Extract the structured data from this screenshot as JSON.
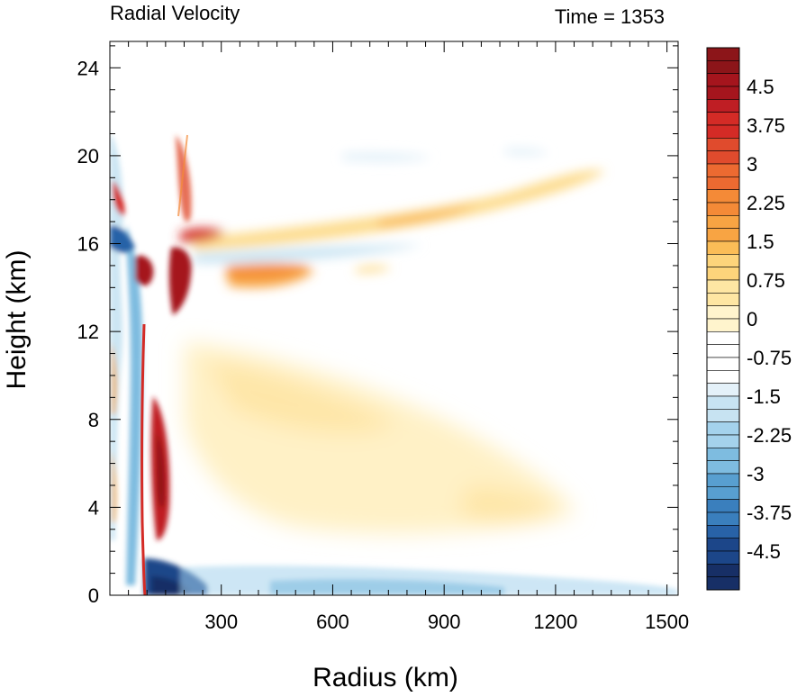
{
  "chart_data": {
    "type": "heatmap",
    "title_left": "Radial Velocity",
    "title_right": "Time = 1353",
    "xlabel": "Radius (km)",
    "ylabel": "Height (km)",
    "xlim": [
      0,
      1530
    ],
    "ylim": [
      0,
      25.2
    ],
    "xticks": [
      300,
      600,
      900,
      1200,
      1500
    ],
    "yticks": [
      0,
      4,
      8,
      12,
      16,
      20,
      24
    ],
    "colorbar": {
      "min": -5.25,
      "max": 5.25,
      "step": 0.25,
      "labels": [
        "4.5",
        "3.75",
        "3",
        "2.25",
        "1.5",
        "0.75",
        "0",
        "-0.75",
        "-1.5",
        "-2.25",
        "-3",
        "-3.75",
        "-4.5"
      ],
      "label_values": [
        4.5,
        3.75,
        3,
        2.25,
        1.5,
        0.75,
        0,
        -0.75,
        -1.5,
        -2.25,
        -3,
        -3.75,
        -4.5
      ],
      "colors_top_to_bottom": [
        "#8c1519",
        "#a5151d",
        "#bf1e24",
        "#d42b26",
        "#e04b2d",
        "#ec6a31",
        "#f48a37",
        "#f8a443",
        "#fbbd57",
        "#fdd47b",
        "#fee6a3",
        "#fff4cd",
        "#ffffff",
        "#ffffff",
        "#e4f1f9",
        "#c7e3f2",
        "#a4d2ec",
        "#7ebce0",
        "#589fd0",
        "#3a7fbd",
        "#2862a7",
        "#1c4689",
        "#172f66"
      ]
    },
    "features": [
      {
        "kind": "strong outflow",
        "r_km": [
          130,
          280
        ],
        "z_km": [
          13,
          16.5
        ],
        "max_value": 5.25
      },
      {
        "kind": "outflow jet",
        "r_km": [
          200,
          1350
        ],
        "z_km": [
          16,
          19.5
        ],
        "max_value": 2.2
      },
      {
        "kind": "inflow layer",
        "r_km": [
          200,
          600
        ],
        "z_km": [
          15,
          16
        ],
        "min_value": -1.2
      },
      {
        "kind": "outflow",
        "r_km": [
          250,
          500
        ],
        "z_km": [
          14,
          15.2
        ],
        "max_value": 2.5
      },
      {
        "kind": "mid-level outflow",
        "r_km": [
          250,
          1250
        ],
        "z_km": [
          4.5,
          11
        ],
        "max_value": 1.2
      },
      {
        "kind": "eyewall outflow",
        "r_km": [
          100,
          170
        ],
        "z_km": [
          3,
          8
        ],
        "max_value": 5.25
      },
      {
        "kind": "boundary-layer inflow",
        "r_km": [
          100,
          1530
        ],
        "z_km": [
          0,
          2
        ],
        "min_value": -5.25
      }
    ]
  }
}
